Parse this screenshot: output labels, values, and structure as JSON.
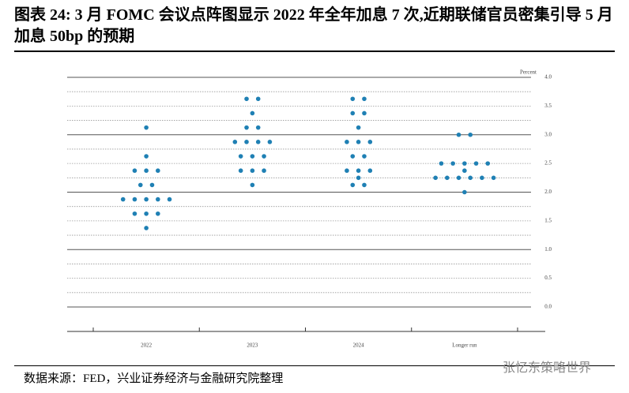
{
  "chart_data": {
    "type": "dot",
    "title": "图表 24: 3 月 FOMC 会议点阵图显示 2022 年全年加息 7 次,近期联储官员密集引导 5 月加息 50bp 的预期",
    "y_axis_label": "Percent",
    "categories": [
      "2022",
      "2023",
      "2024",
      "Longer run"
    ],
    "dots": [
      [
        3.125,
        2.625,
        2.375,
        2.375,
        2.375,
        2.125,
        2.125,
        1.875,
        1.875,
        1.875,
        1.875,
        1.875,
        1.625,
        1.625,
        1.625,
        1.375
      ],
      [
        3.625,
        3.625,
        3.375,
        3.125,
        3.125,
        2.875,
        2.875,
        2.875,
        2.875,
        2.625,
        2.625,
        2.625,
        2.375,
        2.375,
        2.375,
        2.125
      ],
      [
        3.625,
        3.625,
        3.375,
        3.375,
        3.125,
        2.875,
        2.875,
        2.875,
        2.625,
        2.625,
        2.375,
        2.375,
        2.375,
        2.25,
        2.125,
        2.125
      ],
      [
        3.0,
        3.0,
        2.5,
        2.5,
        2.5,
        2.5,
        2.5,
        2.375,
        2.25,
        2.25,
        2.25,
        2.25,
        2.25,
        2.25,
        2.0
      ]
    ],
    "color": "#1f80b4",
    "ylim": [
      0,
      4
    ],
    "yticks": [
      {
        "value": 0,
        "label": "0.0"
      },
      {
        "value": 0.5,
        "label": "0.5"
      },
      {
        "value": 1,
        "label": "1.0"
      },
      {
        "value": 1.5,
        "label": "1.5"
      },
      {
        "value": 2,
        "label": "2.0"
      },
      {
        "value": 2.5,
        "label": "2.5"
      },
      {
        "value": 3,
        "label": "3.0"
      },
      {
        "value": 3.5,
        "label": "3.5"
      },
      {
        "value": 4,
        "label": "4.0"
      }
    ],
    "grid": true,
    "source": "数据来源：FED，兴业证券经济与金融研究院整理",
    "watermark": "张忆东策略世界"
  }
}
